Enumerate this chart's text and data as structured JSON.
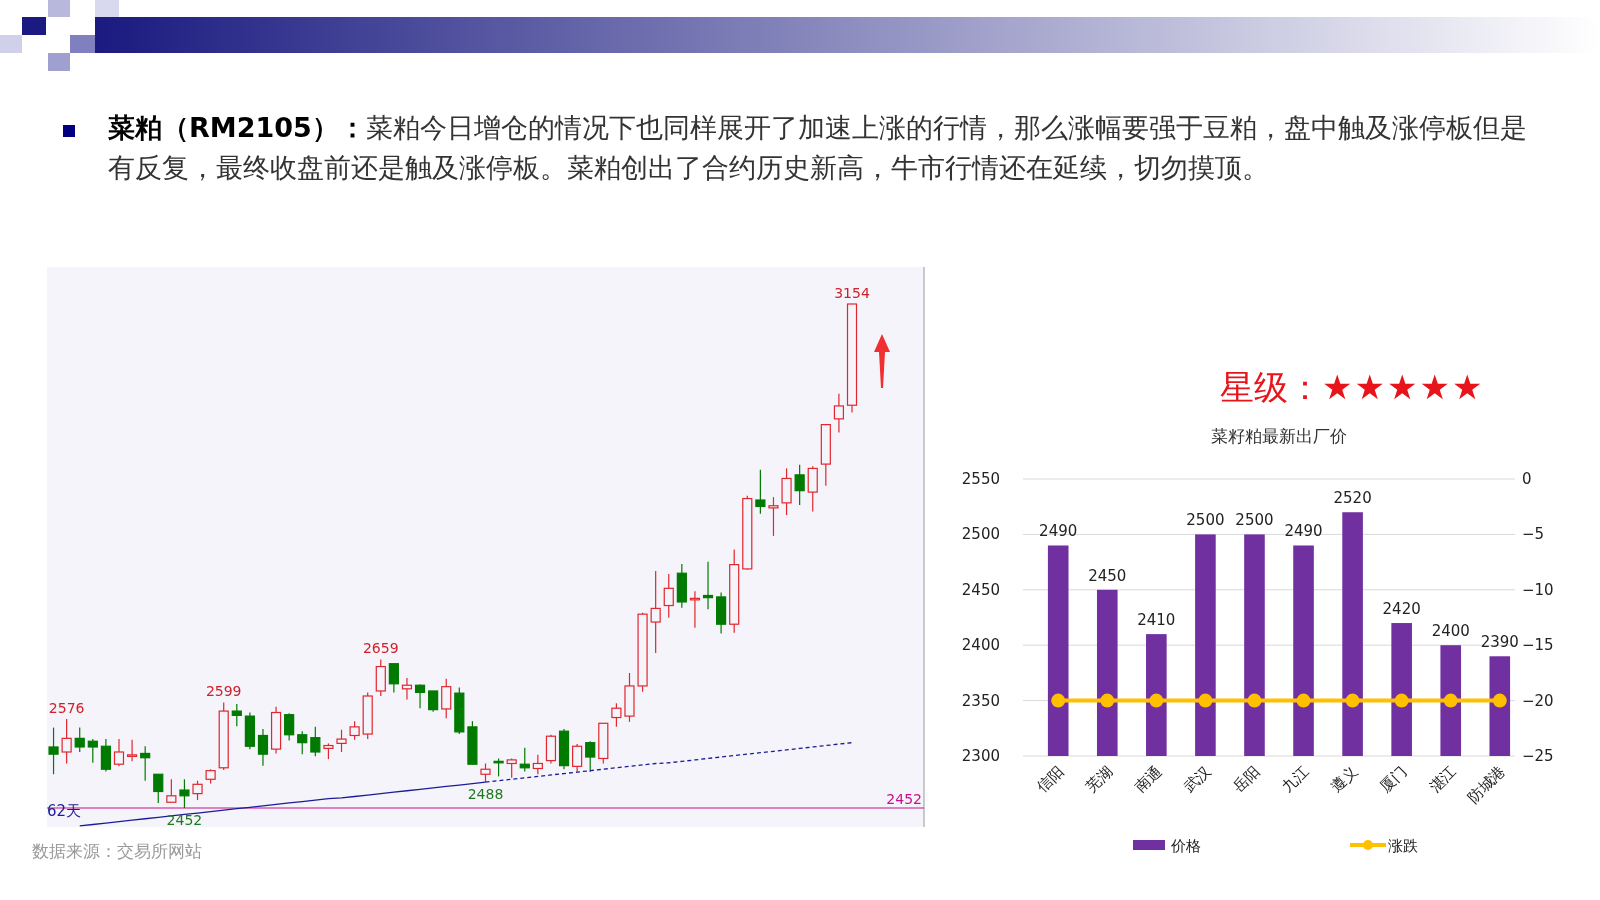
{
  "chart_data": [
    {
      "type": "other",
      "title": "菜粕（RM2105）：",
      "subtitle": "菜粕今日增仓的情况下也同样展开了加速上涨的行情，那么涨幅要强于豆粕，盘中触及涨停板但是有反复，最终收盘前还是触及涨停板。菜粕创出了合约历史新高，牛市行情还在延续，切勿摸顶。"
    },
    {
      "type": "candlestick",
      "categories": [
        null,
        null,
        null,
        null,
        null,
        null,
        null,
        null,
        null,
        null,
        null,
        null,
        null,
        null,
        null,
        null,
        null,
        null,
        null,
        null,
        null,
        null,
        null,
        null,
        null,
        null,
        null,
        null,
        null,
        null,
        null,
        null,
        null,
        null,
        null,
        null,
        null,
        null,
        null,
        null,
        null,
        null,
        null,
        null,
        null,
        null,
        null,
        null,
        null,
        null,
        null,
        null,
        null,
        null,
        null,
        null,
        null,
        null,
        null,
        null,
        null,
        null
      ],
      "series": [
        {
          "type": "candlestick",
          "ohlc": [
            [
              2537,
              2564,
              2499,
              2527
            ],
            [
              2530,
              2576,
              2514,
              2549
            ],
            [
              2549,
              2564,
              2530,
              2537
            ],
            [
              2545,
              2548,
              2515,
              2537
            ],
            [
              2538,
              2548,
              2503,
              2506
            ],
            [
              2513,
              2548,
              2510,
              2530
            ],
            [
              2525,
              2547,
              2517,
              2526
            ],
            [
              2528,
              2538,
              2490,
              2522
            ],
            [
              2499,
              2499,
              2459,
              2475
            ],
            [
              2460,
              2492,
              2460,
              2469
            ],
            [
              2477,
              2492,
              2452,
              2469
            ],
            [
              2472,
              2490,
              2463,
              2485
            ],
            [
              2492,
              2506,
              2486,
              2504
            ],
            [
              2508,
              2599,
              2505,
              2587
            ],
            [
              2587,
              2597,
              2566,
              2581
            ],
            [
              2580,
              2585,
              2534,
              2538
            ],
            [
              2553,
              2562,
              2511,
              2527
            ],
            [
              2534,
              2593,
              2528,
              2585
            ],
            [
              2582,
              2584,
              2546,
              2554
            ],
            [
              2554,
              2559,
              2527,
              2543
            ],
            [
              2550,
              2565,
              2524,
              2530
            ],
            [
              2535,
              2542,
              2520,
              2539
            ],
            [
              2542,
              2561,
              2530,
              2548
            ],
            [
              2553,
              2573,
              2547,
              2565
            ],
            [
              2555,
              2613,
              2548,
              2608
            ],
            [
              2615,
              2659,
              2608,
              2649
            ],
            [
              2653,
              2653,
              2613,
              2625
            ],
            [
              2618,
              2633,
              2603,
              2623
            ],
            [
              2623,
              2624,
              2591,
              2613
            ],
            [
              2615,
              2615,
              2586,
              2589
            ],
            [
              2590,
              2632,
              2577,
              2621
            ],
            [
              2612,
              2620,
              2555,
              2558
            ],
            [
              2565,
              2573,
              2513,
              2513
            ],
            [
              2499,
              2514,
              2488,
              2506
            ],
            [
              2517,
              2521,
              2496,
              2515
            ],
            [
              2514,
              2521,
              2494,
              2519
            ],
            [
              2513,
              2536,
              2503,
              2508
            ],
            [
              2507,
              2526,
              2499,
              2514
            ],
            [
              2518,
              2554,
              2514,
              2552
            ],
            [
              2559,
              2562,
              2506,
              2511
            ],
            [
              2510,
              2541,
              2503,
              2538
            ],
            [
              2543,
              2545,
              2502,
              2523
            ],
            [
              2521,
              2570,
              2514,
              2570
            ],
            [
              2578,
              2598,
              2565,
              2591
            ],
            [
              2580,
              2640,
              2572,
              2622
            ],
            [
              2622,
              2724,
              2614,
              2722
            ],
            [
              2711,
              2782,
              2668,
              2730
            ],
            [
              2734,
              2778,
              2717,
              2758
            ],
            [
              2779,
              2792,
              2731,
              2739
            ],
            [
              2743,
              2754,
              2703,
              2744
            ],
            [
              2748,
              2795,
              2729,
              2745
            ],
            [
              2746,
              2752,
              2695,
              2708
            ],
            [
              2708,
              2812,
              2696,
              2791
            ],
            [
              2785,
              2887,
              2784,
              2883
            ],
            [
              2881,
              2923,
              2862,
              2872
            ],
            [
              2870,
              2885,
              2831,
              2873
            ],
            [
              2877,
              2925,
              2860,
              2911
            ],
            [
              2916,
              2930,
              2874,
              2894
            ],
            [
              2892,
              2928,
              2865,
              2925
            ],
            [
              2931,
              2986,
              2901,
              2986
            ],
            [
              2994,
              3029,
              2975,
              3012
            ],
            [
              3013,
              3154,
              3003,
              3154
            ]
          ]
        },
        {
          "type": "line",
          "color": "#1c1c96",
          "line_style": "solid",
          "values": [
            null,
            null,
            2427,
            2429,
            2431,
            2433,
            2435,
            2437,
            2439,
            2441,
            2443,
            2445,
            2447,
            2449,
            2451,
            2453,
            2455,
            2457,
            2459,
            2461,
            2463,
            2465,
            2466,
            2468,
            2470,
            2472,
            2474,
            2476,
            2478,
            2480,
            2482,
            2484,
            2486,
            2488,
            null,
            null,
            null,
            null,
            null,
            null,
            null,
            null,
            null,
            null,
            null,
            null,
            null,
            null,
            null,
            null,
            null,
            null,
            null,
            null,
            null,
            null,
            null,
            null,
            null,
            null,
            null,
            null
          ]
        },
        {
          "type": "line",
          "color": "#1c1c96",
          "line_style": "dashed",
          "values": [
            null,
            null,
            null,
            null,
            null,
            null,
            null,
            null,
            null,
            null,
            null,
            null,
            null,
            null,
            null,
            null,
            null,
            null,
            null,
            null,
            null,
            null,
            null,
            null,
            null,
            null,
            null,
            null,
            null,
            null,
            null,
            null,
            null,
            2488,
            2490,
            2492,
            2494,
            2496,
            2498,
            2500,
            2502,
            2504,
            2506,
            2508,
            2510,
            2512,
            2514,
            2515,
            2517,
            2519,
            2521,
            2523,
            2525,
            2527,
            2529,
            2531,
            2533,
            2535,
            2537,
            2539,
            2541,
            2543
          ]
        }
      ],
      "ref_lines": [
        {
          "axis": "y",
          "value": 2452,
          "label": "2452",
          "color": "#c8108c"
        }
      ],
      "annotations": [
        {
          "text": "2576",
          "y": 2576
        },
        {
          "text": "2599",
          "y": 2599
        },
        {
          "text": "2659",
          "y": 2659
        },
        {
          "text": "3154",
          "y": 3154
        },
        {
          "text": "2452",
          "y": 2452
        },
        {
          "text": "2488",
          "y": 2488
        },
        "62天",
        "数据来源：交易所网站"
      ]
    },
    {
      "type": "other",
      "title": "星级：",
      "annotations": [
        "★★★★★"
      ]
    },
    {
      "type": "bar",
      "title": "菜籽粕最新出厂价",
      "categories": [
        "信阳",
        "芜湖",
        "南通",
        "武汉",
        "岳阳",
        "九江",
        "遵义",
        "厦门",
        "湛江",
        "防城港"
      ],
      "series": [
        {
          "name": "价格",
          "type": "bar",
          "color": "#7030a0",
          "values": [
            2490,
            2450,
            2410,
            2500,
            2500,
            2490,
            2520,
            2420,
            2400,
            2390
          ],
          "value_labels": [
            "2490",
            "2450",
            "2410",
            "2500",
            "2500",
            "2490",
            "2520",
            "2420",
            "2400",
            "2390"
          ]
        },
        {
          "name": "涨跌",
          "type": "line",
          "axis": "y2",
          "color": "#ffc000",
          "marker": "circle",
          "values": [
            -20,
            -20,
            -20,
            -20,
            -20,
            -20,
            -20,
            -20,
            -20,
            -20
          ]
        }
      ],
      "ylim": [
        2300,
        2550
      ],
      "yticks": [
        2300,
        2350,
        2400,
        2450,
        2500,
        2550
      ],
      "y2lim": [
        -25,
        0
      ],
      "y2ticks": [
        -25,
        -20,
        -15,
        -10,
        -5,
        0
      ],
      "grid": "y",
      "legend": "bottom"
    }
  ]
}
